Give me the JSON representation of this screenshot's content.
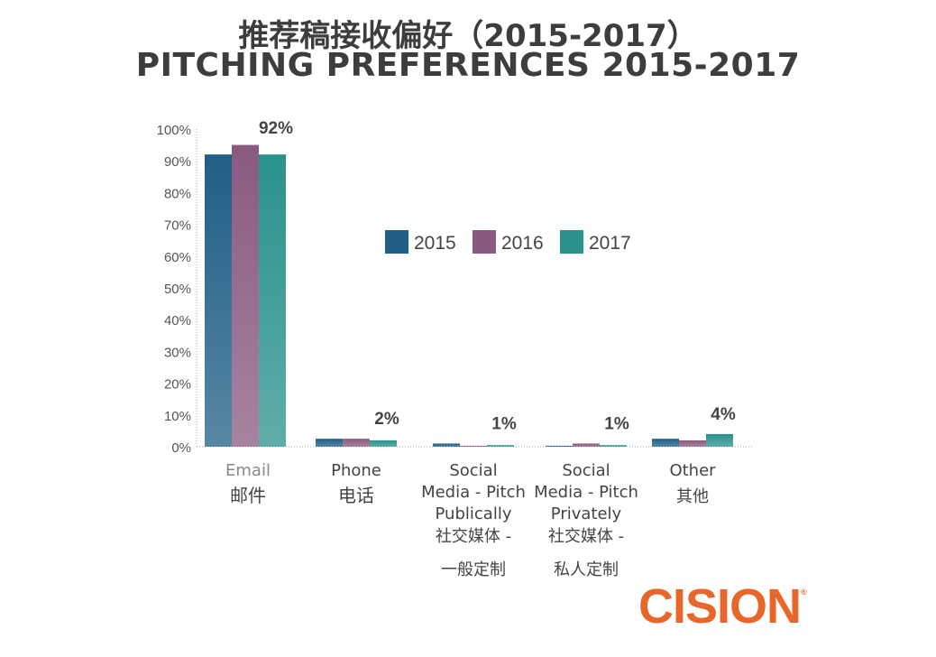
{
  "chart_data": {
    "type": "bar",
    "title": "推荐稿接收偏好（2015-2017）",
    "subtitle": "PITCHING PREFERENCES 2015-2017",
    "xlabel": "",
    "ylabel": "",
    "ylim": [
      0,
      100
    ],
    "yticks": [
      "0%",
      "10%",
      "20%",
      "30%",
      "40%",
      "50%",
      "60%",
      "70%",
      "80%",
      "90%",
      "100%"
    ],
    "grid": false,
    "legend_position": "center-right",
    "categories": [
      [
        "Email",
        "邮件"
      ],
      [
        "Phone",
        "电话"
      ],
      [
        "Social",
        "Media - Pitch",
        "Publically",
        "社交媒体 -",
        "一般定制"
      ],
      [
        "Social",
        "Media - Pitch",
        "Privately",
        "社交媒体 -",
        "私人定制"
      ],
      [
        "Other",
        "其他"
      ]
    ],
    "series": [
      {
        "name": "2015",
        "color": "#1f5f86",
        "values": [
          92,
          2.5,
          1,
          0.3,
          2.5
        ]
      },
      {
        "name": "2016",
        "color": "#8a5a80",
        "values": [
          95,
          2.5,
          0.3,
          1,
          2
        ]
      },
      {
        "name": "2017",
        "color": "#2a928c",
        "values": [
          92,
          2,
          0.5,
          0.5,
          4
        ]
      }
    ],
    "data_labels": [
      "92%",
      "2%",
      "1%",
      "1%",
      "4%"
    ]
  },
  "logo": {
    "text": "CISION",
    "mark": "®",
    "color": "#e8662a"
  }
}
